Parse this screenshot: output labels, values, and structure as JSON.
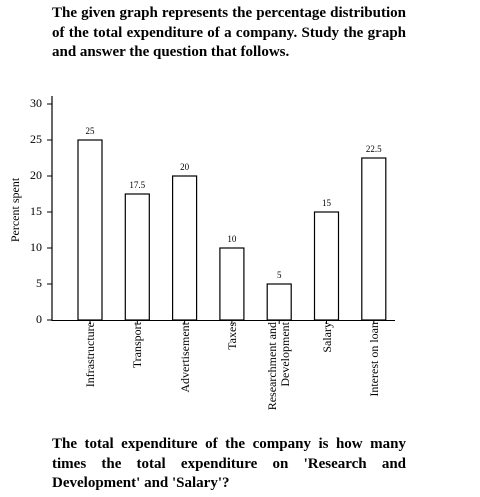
{
  "question_intro": "The given graph represents the percentage distribution of the total expenditure of a company. Study the graph and answer the question that follows.",
  "chart_data": {
    "type": "bar",
    "ylabel": "Percent spent",
    "categories": [
      "Infrastructure",
      "Transport",
      "Advertisement",
      "Taxes",
      "Researchment and Development",
      "Salary",
      "Interest on loan"
    ],
    "values": [
      25,
      17.5,
      20,
      10,
      5,
      15,
      22.5
    ],
    "color": "#ffffff",
    "ylim": [
      0,
      30
    ],
    "yticks": [
      0,
      5,
      10,
      15,
      20,
      25,
      30
    ],
    "grid": false
  },
  "question": "The total expenditure of the company is how many times the total expenditure on 'Research and Development' and 'Salary'?"
}
